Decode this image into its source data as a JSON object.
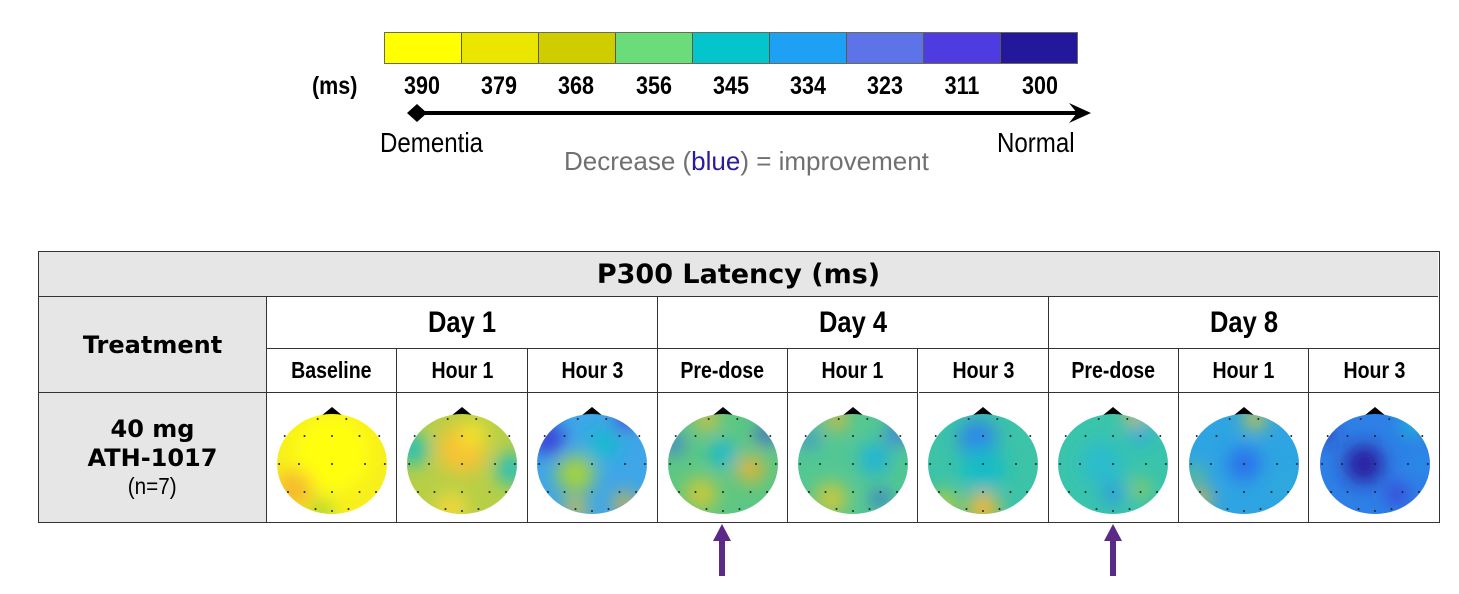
{
  "legend": {
    "unit_label": "(ms)",
    "colors": [
      "#ffff00",
      "#ebe600",
      "#cfcc00",
      "#6bdc7a",
      "#05c5cc",
      "#1ea0f5",
      "#5c74e8",
      "#4e3ce0",
      "#23189c"
    ],
    "ticks": [
      "390",
      "379",
      "368",
      "356",
      "345",
      "334",
      "323",
      "311",
      "300"
    ],
    "left_label": "Dementia",
    "right_label": "Normal",
    "note_prefix": "Decrease (",
    "note_highlight": "blue",
    "note_suffix": ") = improvement"
  },
  "table": {
    "title": "P300 Latency (ms)",
    "treatment_header": "Treatment",
    "days": [
      "Day 1",
      "Day 4",
      "Day 8"
    ],
    "timepoints": [
      "Baseline",
      "Hour 1",
      "Hour 3",
      "Pre-dose",
      "Hour 1",
      "Hour 3",
      "Pre-dose",
      "Hour 1",
      "Hour 3"
    ],
    "row": {
      "dose_line1": "40 mg",
      "dose_line2": "ATH-1017",
      "n_label": "(n=7)"
    },
    "maps": [
      {
        "day": "Day 1",
        "timepoint": "Baseline",
        "dominant": "yellow",
        "blobs": [
          [
            "#ffff10",
            0.5,
            0.4,
            0.7
          ],
          [
            "#f5b92e",
            0.15,
            0.75,
            0.35
          ],
          [
            "#9ccf3a",
            0.4,
            0.98,
            0.2
          ]
        ],
        "base": "#f7ef1e"
      },
      {
        "day": "Day 1",
        "timepoint": "Hour 1",
        "dominant": "orange-yellow",
        "blobs": [
          [
            "#f7c336",
            0.5,
            0.35,
            0.45
          ],
          [
            "#f5e22a",
            0.6,
            0.2,
            0.25
          ],
          [
            "#2cc0b2",
            0.05,
            0.35,
            0.3
          ],
          [
            "#2fbfb6",
            0.95,
            0.55,
            0.3
          ],
          [
            "#f0d83a",
            0.4,
            0.95,
            0.3
          ]
        ],
        "base": "#b7cf46"
      },
      {
        "day": "Day 1",
        "timepoint": "Hour 3",
        "dominant": "blue-green",
        "blobs": [
          [
            "#3a3fd8",
            0.1,
            0.25,
            0.3
          ],
          [
            "#4a40d8",
            0.8,
            0.05,
            0.2
          ],
          [
            "#a4d240",
            0.35,
            0.6,
            0.35
          ],
          [
            "#e6b433",
            0.8,
            0.9,
            0.2
          ],
          [
            "#e0c038",
            0.35,
            0.95,
            0.2
          ],
          [
            "#15b9d0",
            0.6,
            0.3,
            0.3
          ]
        ],
        "base": "#3fa6e8"
      },
      {
        "day": "Day 4",
        "timepoint": "Pre-dose",
        "dominant": "green",
        "blobs": [
          [
            "#e7bf34",
            0.35,
            0.05,
            0.2
          ],
          [
            "#3c50e0",
            0.9,
            0.2,
            0.18
          ],
          [
            "#3f6fe6",
            0.05,
            0.3,
            0.18
          ],
          [
            "#19b8d2",
            0.5,
            0.4,
            0.25
          ],
          [
            "#e6b432",
            0.75,
            0.55,
            0.25
          ],
          [
            "#c9c83a",
            0.3,
            0.8,
            0.3
          ]
        ],
        "base": "#5cc784"
      },
      {
        "day": "Day 4",
        "timepoint": "Hour 1",
        "dominant": "green",
        "blobs": [
          [
            "#e0b834",
            0.35,
            0.05,
            0.2
          ],
          [
            "#3a72ea",
            0.9,
            0.2,
            0.2
          ],
          [
            "#3c7cea",
            0.1,
            0.25,
            0.15
          ],
          [
            "#21b4d6",
            0.7,
            0.45,
            0.3
          ],
          [
            "#2f5ae6",
            0.75,
            0.85,
            0.15
          ],
          [
            "#c8c83c",
            0.3,
            0.85,
            0.3
          ]
        ],
        "base": "#53c793"
      },
      {
        "day": "Day 4",
        "timepoint": "Hour 3",
        "dominant": "cyan",
        "blobs": [
          [
            "#2d85ea",
            0.45,
            0.25,
            0.35
          ],
          [
            "#f0b836",
            0.5,
            0.95,
            0.3
          ],
          [
            "#b6cc3e",
            0.15,
            0.9,
            0.25
          ],
          [
            "#13bcc6",
            0.5,
            0.55,
            0.4
          ]
        ],
        "base": "#3cc3a8"
      },
      {
        "day": "Day 8",
        "timepoint": "Pre-dose",
        "dominant": "cyan",
        "blobs": [
          [
            "#e8ba32",
            0.7,
            0.02,
            0.18
          ],
          [
            "#26a8e0",
            0.75,
            0.2,
            0.2
          ],
          [
            "#2b9ae4",
            0.5,
            0.8,
            0.2
          ],
          [
            "#b6cc3a",
            0.75,
            0.75,
            0.15
          ],
          [
            "#29bccc",
            0.4,
            0.5,
            0.4
          ]
        ],
        "base": "#3ac4ac"
      },
      {
        "day": "Day 8",
        "timepoint": "Hour 1",
        "dominant": "blue",
        "blobs": [
          [
            "#d8c838",
            0.6,
            0.05,
            0.2
          ],
          [
            "#2a70ec",
            0.5,
            0.5,
            0.3
          ],
          [
            "#e0b836",
            0.1,
            0.85,
            0.2
          ],
          [
            "#76cc60",
            0.05,
            0.6,
            0.15
          ],
          [
            "#2eaadc",
            0.85,
            0.7,
            0.25
          ]
        ],
        "base": "#2ea4e2"
      },
      {
        "day": "Day 8",
        "timepoint": "Hour 3",
        "dominant": "dark-blue",
        "blobs": [
          [
            "#2a1aa0",
            0.4,
            0.5,
            0.35
          ],
          [
            "#3020a8",
            0.05,
            0.2,
            0.15
          ],
          [
            "#3a3fd8",
            0.7,
            0.8,
            0.2
          ],
          [
            "#1eb0da",
            0.85,
            0.1,
            0.25
          ],
          [
            "#2196e8",
            0.9,
            0.5,
            0.15
          ]
        ],
        "base": "#2e7fe6"
      }
    ]
  },
  "annotations": {
    "arrow_color": "#5b2a86",
    "arrows_under": [
      "Day 4 Pre-dose",
      "Day 8 Pre-dose"
    ]
  }
}
